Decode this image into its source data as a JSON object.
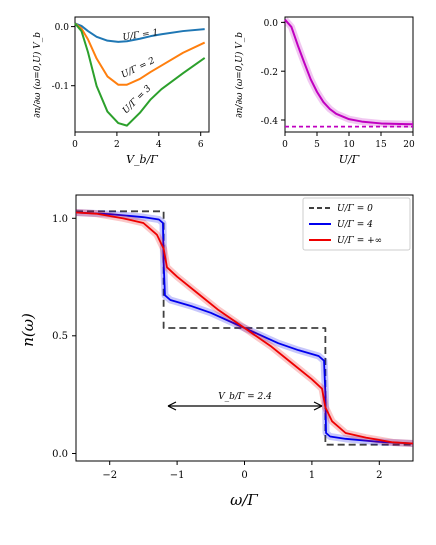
{
  "chart_data": [
    {
      "type": "line",
      "panel": "top-left",
      "xlabel": "V_b/Γ",
      "ylabel": "∂n/∂ω (ω=0,U) V_b",
      "xlim": [
        0,
        6.2
      ],
      "ylim": [
        -0.17,
        0.01
      ],
      "xticks": [
        "0",
        "2",
        "4",
        "6"
      ],
      "yticks": [
        "0.0",
        "-0.1"
      ],
      "grid": false,
      "series": [
        {
          "name": "U/Γ = 1",
          "color": "#1f77b4",
          "x": [
            0,
            0.3,
            0.6,
            1.0,
            1.5,
            2.0,
            2.4,
            3.0,
            3.5,
            4.0,
            5.0,
            6.0
          ],
          "y": [
            0,
            -0.004,
            -0.012,
            -0.021,
            -0.027,
            -0.029,
            -0.028,
            -0.024,
            -0.02,
            -0.017,
            -0.012,
            -0.009
          ]
        },
        {
          "name": "U/Γ = 2",
          "color": "#ff7f0e",
          "x": [
            0,
            0.3,
            0.6,
            1.0,
            1.5,
            2.0,
            2.4,
            3.0,
            3.5,
            4.0,
            5.0,
            6.0
          ],
          "y": [
            0,
            -0.008,
            -0.025,
            -0.055,
            -0.083,
            -0.096,
            -0.096,
            -0.087,
            -0.076,
            -0.066,
            -0.046,
            -0.03
          ]
        },
        {
          "name": "U/Γ = 3",
          "color": "#2ca02c",
          "x": [
            0,
            0.3,
            0.6,
            1.0,
            1.5,
            2.0,
            2.4,
            3.0,
            3.5,
            4.0,
            5.0,
            6.0
          ],
          "y": [
            0,
            -0.012,
            -0.045,
            -0.098,
            -0.138,
            -0.156,
            -0.16,
            -0.14,
            -0.119,
            -0.103,
            -0.078,
            -0.054
          ]
        }
      ],
      "annotations": [
        "U/Γ = 1",
        "U/Γ = 2",
        "U/Γ = 3"
      ]
    },
    {
      "type": "line",
      "panel": "top-right",
      "xlabel": "U/Γ",
      "ylabel": "∂n/∂ω (ω=0,U) V_b",
      "xlim": [
        0,
        20
      ],
      "ylim": [
        -0.42,
        0.01
      ],
      "xticks": [
        "0",
        "5",
        "10",
        "15",
        "20"
      ],
      "yticks": [
        "0.0",
        "-0.2",
        "-0.4"
      ],
      "grid": false,
      "series": [
        {
          "name": "U/Γ",
          "color": "#c000c0",
          "x": [
            0,
            1,
            2,
            3,
            4,
            5,
            6,
            7,
            8,
            10,
            12,
            15,
            18,
            20
          ],
          "y": [
            0,
            -0.027,
            -0.096,
            -0.16,
            -0.222,
            -0.27,
            -0.308,
            -0.334,
            -0.352,
            -0.372,
            -0.381,
            -0.388,
            -0.39,
            -0.391
          ]
        },
        {
          "name": "asymptote",
          "color": "#c000c0",
          "style": "dashed",
          "x": [
            0,
            20
          ],
          "y": [
            -0.4,
            -0.4
          ]
        }
      ]
    },
    {
      "type": "line",
      "panel": "bottom",
      "xlabel": "ω/Γ",
      "ylabel": "n(ω)",
      "xlim": [
        -2.5,
        2.5
      ],
      "ylim": [
        -0.07,
        1.07
      ],
      "xticks": [
        "−2",
        "−1",
        "0",
        "1",
        "2"
      ],
      "yticks": [
        "0.0",
        "0.5",
        "1.0"
      ],
      "grid": false,
      "legend_position": "top-right",
      "annotation": "V_b/Γ = 2.4",
      "series": [
        {
          "name": "U/Γ = 0",
          "color": "#404040",
          "style": "dashed",
          "x": [
            -2.5,
            -1.2,
            -1.2,
            1.2,
            1.2,
            2.5
          ],
          "y": [
            1.0,
            1.0,
            0.5,
            0.5,
            0.0,
            0.0
          ]
        },
        {
          "name": "U/Γ = 4",
          "color": "#0000ee",
          "x": [
            -2.5,
            -2.0,
            -1.5,
            -1.27,
            -1.21,
            -1.2,
            -1.18,
            -1.1,
            -0.8,
            -0.5,
            0,
            0.5,
            0.8,
            1.1,
            1.18,
            1.2,
            1.21,
            1.27,
            1.5,
            2.0,
            2.5
          ],
          "y": [
            0.995,
            0.988,
            0.975,
            0.965,
            0.95,
            0.78,
            0.64,
            0.62,
            0.595,
            0.565,
            0.5,
            0.435,
            0.405,
            0.38,
            0.36,
            0.22,
            0.05,
            0.035,
            0.025,
            0.012,
            0.005
          ]
        },
        {
          "name": "U/Γ = +∞",
          "color": "#ee0000",
          "x": [
            -2.5,
            -2.2,
            -1.8,
            -1.5,
            -1.3,
            -1.2,
            -1.15,
            -1.0,
            -0.7,
            -0.4,
            0,
            0.4,
            0.7,
            1.0,
            1.15,
            1.2,
            1.3,
            1.5,
            1.8,
            2.2,
            2.5
          ],
          "y": [
            0.995,
            0.99,
            0.97,
            0.95,
            0.9,
            0.84,
            0.76,
            0.72,
            0.65,
            0.58,
            0.5,
            0.42,
            0.35,
            0.28,
            0.24,
            0.16,
            0.1,
            0.05,
            0.03,
            0.01,
            0.005
          ]
        }
      ]
    }
  ]
}
